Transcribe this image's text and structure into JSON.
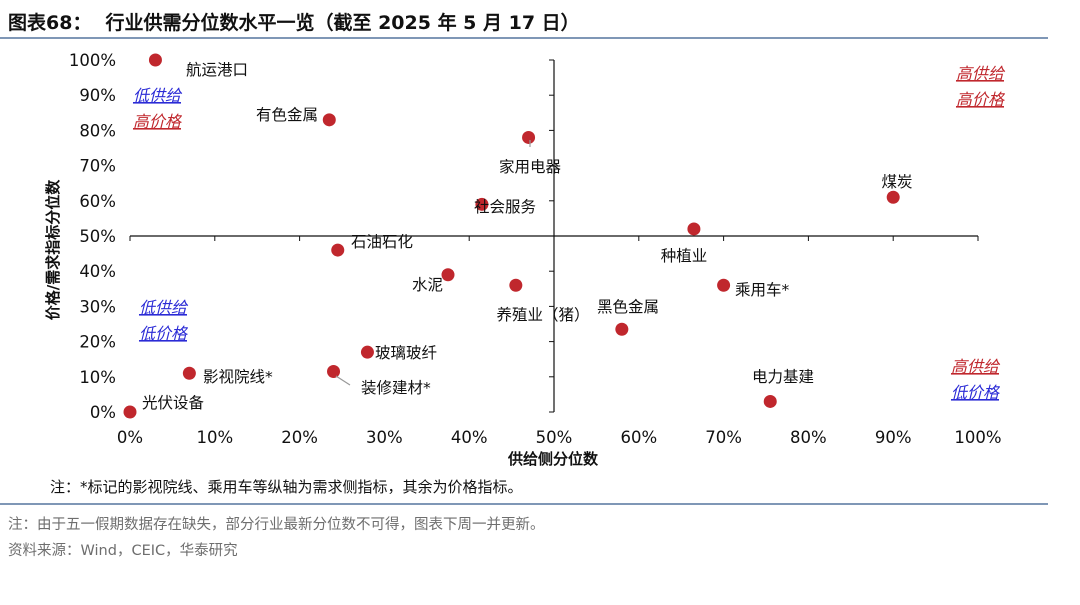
{
  "header": {
    "figure_label": "图表68：",
    "title": "行业供需分位数水平一览（截至 2025 年 5 月 17 日）"
  },
  "chart_data": {
    "type": "scatter",
    "xlabel": "供给侧分位数",
    "ylabel": "价格/需求指标分位数",
    "xlim": [
      0,
      100
    ],
    "ylim": [
      0,
      100
    ],
    "x_ticks": [
      "0%",
      "10%",
      "20%",
      "30%",
      "40%",
      "50%",
      "60%",
      "70%",
      "80%",
      "90%",
      "100%"
    ],
    "y_ticks": [
      "0%",
      "10%",
      "20%",
      "30%",
      "40%",
      "50%",
      "60%",
      "70%",
      "80%",
      "90%",
      "100%"
    ],
    "grid": false,
    "point_color": "#c0272d",
    "points": [
      {
        "label": "航运港口",
        "x": 3,
        "y": 100
      },
      {
        "label": "有色金属",
        "x": 23.5,
        "y": 83
      },
      {
        "label": "家用电器",
        "x": 47,
        "y": 78
      },
      {
        "label": "煤炭",
        "x": 90,
        "y": 61
      },
      {
        "label": "社会服务",
        "x": 41.5,
        "y": 59
      },
      {
        "label": "种植业",
        "x": 66.5,
        "y": 52
      },
      {
        "label": "石油石化",
        "x": 24.5,
        "y": 46
      },
      {
        "label": "水泥",
        "x": 37.5,
        "y": 39
      },
      {
        "label": "养殖业（猪）",
        "x": 45.5,
        "y": 36
      },
      {
        "label": "乘用车*",
        "x": 70,
        "y": 36
      },
      {
        "label": "黑色金属",
        "x": 58,
        "y": 23.5
      },
      {
        "label": "玻璃玻纤",
        "x": 28,
        "y": 17
      },
      {
        "label": "影视院线*",
        "x": 7,
        "y": 11
      },
      {
        "label": "装修建材*",
        "x": 24,
        "y": 11.5
      },
      {
        "label": "电力基建",
        "x": 75.5,
        "y": 3
      },
      {
        "label": "光伏设备",
        "x": 0,
        "y": 0
      }
    ],
    "quadrant_labels": [
      {
        "position": "top-left",
        "lines": [
          {
            "text": "低供给",
            "color": "#2b2bd6"
          },
          {
            "text": "高价格",
            "color": "#c0272d"
          }
        ]
      },
      {
        "position": "top-right",
        "lines": [
          {
            "text": "高供给",
            "color": "#c0272d"
          },
          {
            "text": "高价格",
            "color": "#c0272d"
          }
        ]
      },
      {
        "position": "bottom-left",
        "lines": [
          {
            "text": "低供给",
            "color": "#2b2bd6"
          },
          {
            "text": "低价格",
            "color": "#2b2bd6"
          }
        ]
      },
      {
        "position": "bottom-right",
        "lines": [
          {
            "text": "高供给",
            "color": "#c0272d"
          },
          {
            "text": "低价格",
            "color": "#2b2bd6"
          }
        ]
      }
    ]
  },
  "footnote": "注：*标记的影视院线、乘用车等纵轴为需求侧指标，其余为价格指标。",
  "note": "注：由于五一假期数据存在缺失，部分行业最新分位数不可得，图表下周一并更新。",
  "source": "资料来源：Wind，CEIC，华泰研究"
}
